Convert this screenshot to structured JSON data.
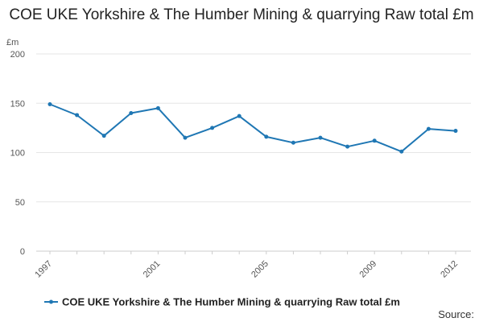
{
  "chart_data": {
    "type": "line",
    "title": "COE UKE Yorkshire & The Humber Mining & quarrying Raw total £m",
    "ylabel": "£m",
    "xlabel": "",
    "ylim": [
      0,
      200
    ],
    "yticks": [
      0,
      50,
      100,
      150,
      200
    ],
    "xlim": [
      1997,
      2012
    ],
    "xticks": [
      1997,
      2001,
      2005,
      2009,
      2012
    ],
    "grid": true,
    "legend_position": "bottom",
    "series": [
      {
        "name": "COE UKE Yorkshire & The Humber Mining & quarrying Raw total £m",
        "color": "#1f77b4",
        "x": [
          1997,
          1998,
          1999,
          2000,
          2001,
          2002,
          2003,
          2004,
          2005,
          2006,
          2007,
          2008,
          2009,
          2010,
          2011,
          2012
        ],
        "values": [
          149,
          138,
          117,
          140,
          145,
          115,
          125,
          137,
          116,
          110,
          115,
          106,
          112,
          101,
          124,
          122
        ]
      }
    ]
  },
  "source_label": "Source:"
}
